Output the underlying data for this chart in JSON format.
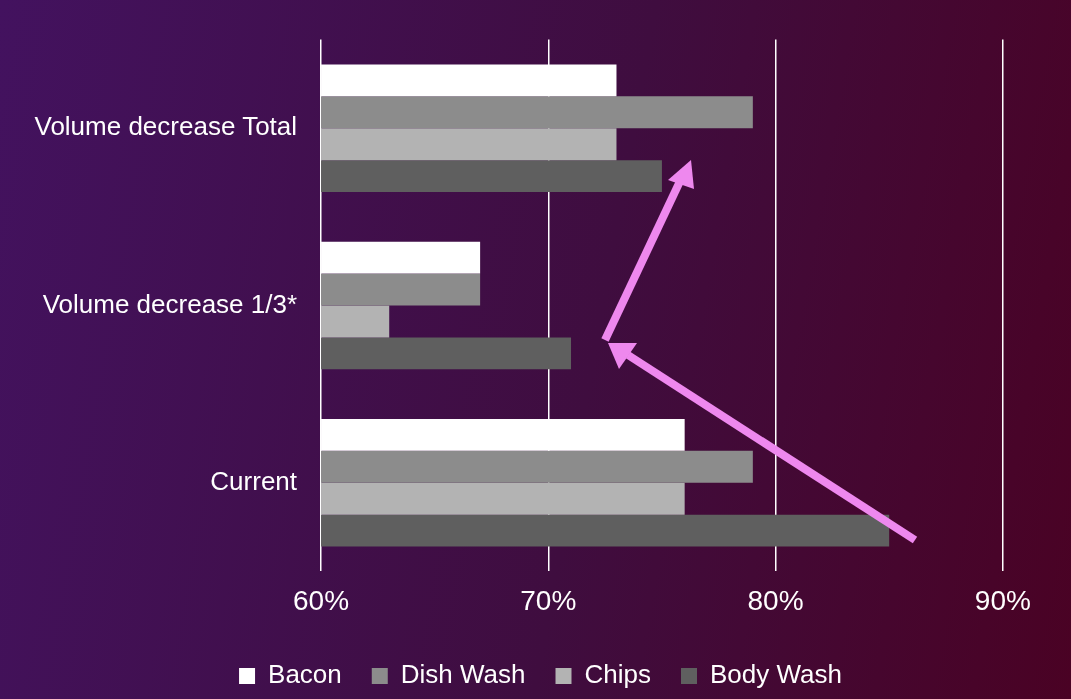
{
  "chart_data": {
    "type": "bar",
    "orientation": "horizontal",
    "categories": [
      "Volume decrease Total",
      "Volume decrease 1/3*",
      "Current"
    ],
    "series": [
      {
        "name": "Bacon",
        "color": "#ffffff",
        "values": [
          73,
          67,
          76
        ]
      },
      {
        "name": "Dish Wash",
        "color": "#8c8c8c",
        "values": [
          79,
          67,
          79
        ]
      },
      {
        "name": "Chips",
        "color": "#b3b3b3",
        "values": [
          73,
          63,
          76
        ]
      },
      {
        "name": "Body Wash",
        "color": "#5f5f5f",
        "values": [
          75,
          71,
          85
        ]
      }
    ],
    "xlim": [
      60,
      93
    ],
    "xticks": [
      {
        "value": 60,
        "label": "60%"
      },
      {
        "value": 70,
        "label": "70%"
      },
      {
        "value": 80,
        "label": "80%"
      },
      {
        "value": 90,
        "label": "90%"
      }
    ],
    "grid": "x",
    "legend": "bottom"
  }
}
